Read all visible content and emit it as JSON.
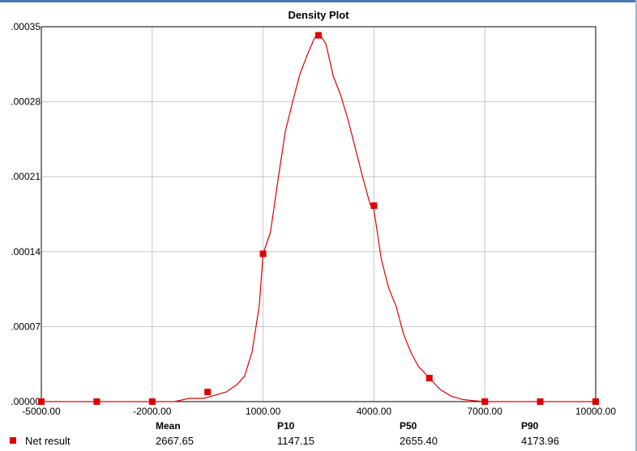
{
  "chart_data": {
    "type": "line",
    "title": "Density Plot",
    "xlim": [
      -5000,
      10000
    ],
    "ylim": [
      0,
      0.00035
    ],
    "x_ticks": [
      -5000,
      -2000,
      1000,
      4000,
      7000,
      10000
    ],
    "x_tick_labels": [
      "-5000.00",
      "-2000.00",
      "1000.00",
      "4000.00",
      "7000.00",
      "10000.00"
    ],
    "y_ticks": [
      0,
      7e-05,
      0.00014,
      0.00021,
      0.00028,
      0.00035
    ],
    "y_tick_labels": [
      ".00000",
      ".00007",
      ".00014",
      ".00021",
      ".00028",
      ".00035"
    ],
    "grid": true,
    "series": [
      {
        "name": "Net result",
        "color": "#e00000",
        "curve_x": [
          -5000,
          -1400,
          -1000,
          -600,
          -300,
          0,
          300,
          500,
          700,
          900,
          1000,
          1200,
          1400,
          1600,
          1800,
          2000,
          2200,
          2400,
          2550,
          2700,
          2900,
          3100,
          3300,
          3500,
          3700,
          3900,
          4000,
          4200,
          4400,
          4600,
          4800,
          5000,
          5200,
          5500,
          5800,
          6100,
          6400,
          6700,
          7000,
          10000
        ],
        "curve_y": [
          0,
          0,
          3e-06,
          3e-06,
          6e-06,
          9e-06,
          1.6e-05,
          2.4e-05,
          4.6e-05,
          9e-05,
          0.000138,
          0.000158,
          0.000206,
          0.000252,
          0.00028,
          0.000306,
          0.000324,
          0.00034,
          0.000342,
          0.000334,
          0.000304,
          0.000286,
          0.000263,
          0.000236,
          0.000209,
          0.000184,
          0.000179,
          0.000133,
          0.000106,
          8.9e-05,
          6.3e-05,
          4.6e-05,
          3.3e-05,
          2.2e-05,
          1.1e-05,
          5e-06,
          2e-06,
          8e-07,
          0,
          0
        ],
        "marker_x": [
          -5000,
          -3500,
          -2000,
          -500,
          1000,
          2500,
          4000,
          5500,
          7000,
          8500,
          10000
        ],
        "marker_y": [
          0,
          0,
          0,
          9e-06,
          0.000138,
          0.000342,
          0.000183,
          2.2e-05,
          0,
          0,
          0
        ]
      }
    ],
    "statistics": {
      "headers": [
        "Mean",
        "P10",
        "P50",
        "P90"
      ],
      "rows": [
        {
          "name": "Net result",
          "values": [
            "2667.65",
            "1147.15",
            "2655.40",
            "4173.96"
          ]
        }
      ]
    }
  }
}
